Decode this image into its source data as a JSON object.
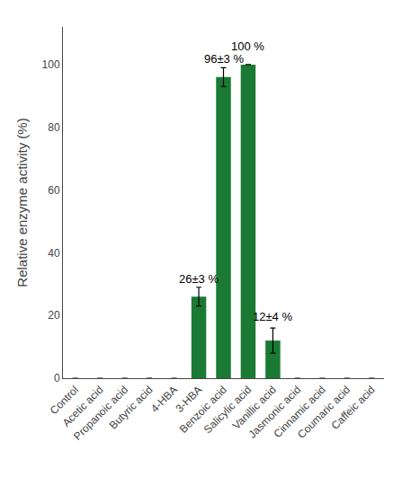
{
  "chart_data": {
    "type": "bar",
    "categories": [
      "Control",
      "Acetic acid",
      "Propanoic acid",
      "Butyric acid",
      "4-HBA",
      "3-HBA",
      "Benzoic acid",
      "Salicylic acid",
      "Vanillic acid",
      "Jasmonic acid",
      "Cinnamic acid",
      "Coumaric acid",
      "Caffeic acid"
    ],
    "values": [
      0,
      0,
      0,
      0,
      0,
      26,
      96,
      100,
      12,
      0,
      0,
      0,
      0
    ],
    "errors": [
      null,
      null,
      null,
      null,
      null,
      3,
      3,
      null,
      4,
      null,
      null,
      null,
      null
    ],
    "color": "#1a7a34",
    "annotations": [
      {
        "text": "26±3 %",
        "category": "3-HBA",
        "y": 29
      },
      {
        "text": "96±3 %",
        "category": "Benzoic acid",
        "y": 99
      },
      {
        "text": "100 %",
        "category": "Salicylic acid",
        "y": 103
      },
      {
        "text": "12±4 %",
        "category": "Vanillic acid",
        "y": 17
      }
    ],
    "ylabel": "Relative enzyme activity (%)",
    "ylim": [
      0,
      112
    ],
    "yticks": [
      0,
      20,
      40,
      60,
      80,
      100
    ],
    "grid": false
  }
}
